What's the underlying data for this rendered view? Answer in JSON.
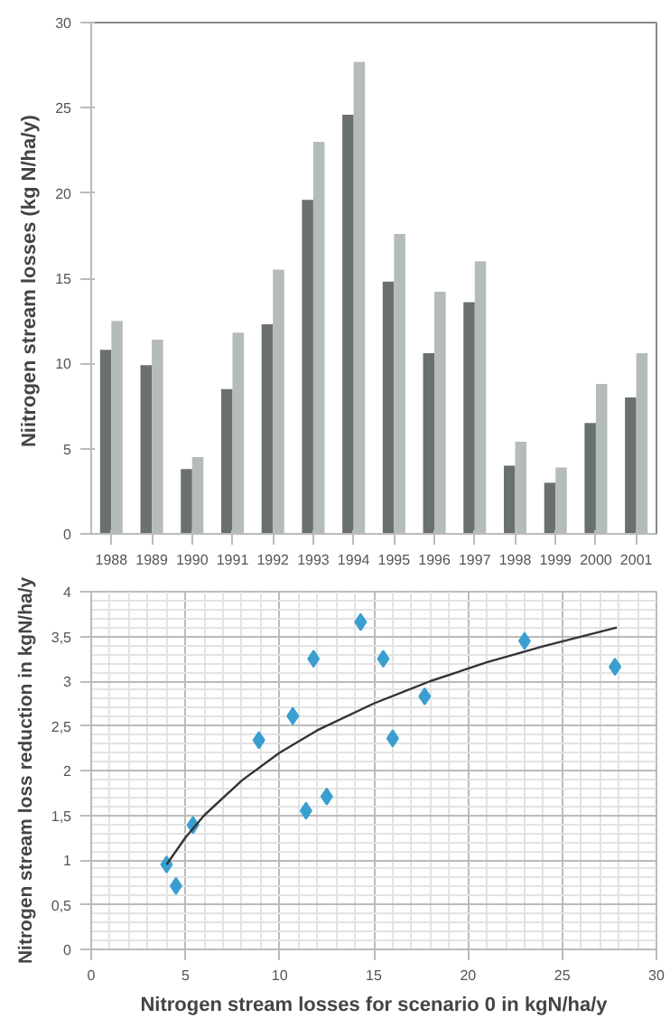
{
  "chart_data": [
    {
      "type": "bar",
      "ylabel": "Niitrogen  stream losses (kg N/ha/y)",
      "categories": [
        "1988",
        "1989",
        "1990",
        "1991",
        "1992",
        "1993",
        "1994",
        "1995",
        "1996",
        "1997",
        "1998",
        "1999",
        "2000",
        "2001"
      ],
      "series": [
        {
          "color": "#6a7070",
          "values": [
            10.8,
            9.9,
            3.8,
            8.5,
            12.3,
            19.6,
            24.6,
            14.8,
            10.6,
            13.6,
            4.0,
            3.0,
            6.5,
            8.0
          ]
        },
        {
          "color": "#b4bcb9",
          "values": [
            12.5,
            11.4,
            4.5,
            11.8,
            15.5,
            23.0,
            27.7,
            17.6,
            14.2,
            16.0,
            5.4,
            3.9,
            8.8,
            10.6
          ]
        }
      ],
      "ylim": [
        0,
        30
      ],
      "yticks": [
        0,
        5,
        10,
        15,
        20,
        25,
        30
      ],
      "grid": false
    },
    {
      "type": "scatter",
      "xlabel": "Nitrogen stream losses for scenario 0 in kgN/ha/y",
      "ylabel": "Nitrogen stream loss reduction in kgN/ha/y",
      "x": [
        4.0,
        4.5,
        5.4,
        8.9,
        10.7,
        11.4,
        11.8,
        12.5,
        14.3,
        15.5,
        16.0,
        17.7,
        23.0,
        27.8
      ],
      "series": [
        {
          "type": "scatter",
          "color": "#3a9fd0",
          "marker": "diamond",
          "values": [
            0.95,
            0.71,
            1.39,
            2.34,
            2.61,
            1.55,
            3.25,
            1.71,
            3.66,
            3.25,
            2.36,
            2.83,
            3.45,
            3.16
          ]
        },
        {
          "type": "line",
          "color": "#333333",
          "marker": "none",
          "x": [
            4,
            5,
            6,
            8,
            10,
            12,
            15,
            18,
            21,
            24,
            27.9
          ],
          "values": [
            0.95,
            1.25,
            1.5,
            1.89,
            2.2,
            2.45,
            2.75,
            3.0,
            3.21,
            3.39,
            3.6
          ]
        }
      ],
      "xlim": [
        0,
        30
      ],
      "xticks": [
        0,
        5,
        10,
        15,
        20,
        25,
        30
      ],
      "ylim": [
        0,
        4
      ],
      "yticks": [
        0,
        {
          "value": 0.5,
          "label": "0,5"
        },
        1,
        {
          "value": 1.5,
          "label": "1,5"
        },
        2,
        {
          "value": 2.5,
          "label": "2,5"
        },
        3,
        {
          "value": 3.5,
          "label": "3,5"
        },
        4
      ],
      "grid": true
    }
  ]
}
